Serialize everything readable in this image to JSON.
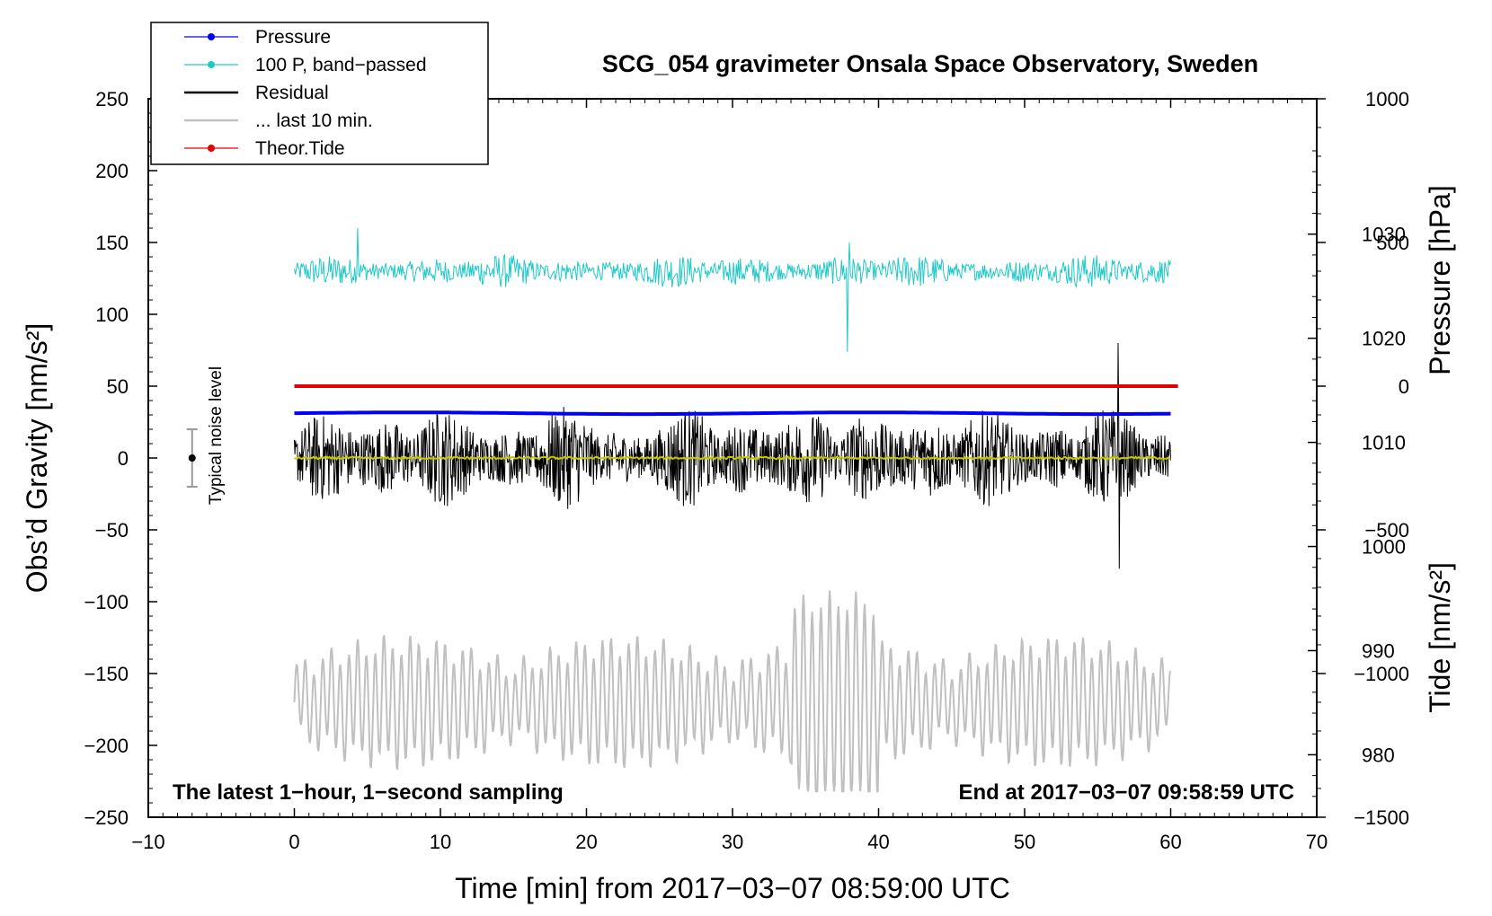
{
  "chart_data": {
    "type": "line",
    "title": "SCG_054 gravimeter Onsala Space Observatory, Sweden",
    "xlabel": "Time [min] from 2017−03−07 08:59:00 UTC",
    "ylabel_left": "Obs’d Gravity [nm/s²]",
    "ylabel_right_top": "Pressure [hPa]",
    "ylabel_right_bottom": "Tide [nm/s²]",
    "xlim": [
      -10,
      70
    ],
    "ylim": [
      -250,
      250
    ],
    "x_ticks": [
      "−10",
      "0",
      "10",
      "20",
      "30",
      "40",
      "50",
      "60",
      "70"
    ],
    "y_ticks": [
      "−250",
      "−200",
      "−150",
      "−100",
      "−50",
      "0",
      "50",
      "100",
      "150",
      "200",
      "250"
    ],
    "pressure_axis": {
      "ticks": [
        "980",
        "990",
        "1000",
        "1010",
        "1020",
        "1030"
      ],
      "values": [
        980,
        990,
        1000,
        1010,
        1020,
        1030
      ],
      "range": [
        974,
        1043
      ]
    },
    "tide_axis": {
      "ticks": [
        "−1500",
        "−1000",
        "−500",
        "0",
        "500",
        "1000"
      ],
      "values": [
        -1500,
        -1000,
        -500,
        0,
        500,
        1000
      ],
      "range": [
        -1500,
        1000
      ]
    },
    "note_left": "The latest 1−hour, 1−second sampling",
    "note_right": "End at 2017−03−07 09:58:59 UTC",
    "noise_label": "Typical noise level",
    "noise_bar": {
      "x": -7,
      "center": 0,
      "half_range": 20
    },
    "legend": {
      "position": "top-left",
      "entries": [
        {
          "label": "Pressure",
          "color": "#0000ff",
          "marker": true
        },
        {
          "label": "100 P, band−passed",
          "color": "#20c8c8",
          "marker": true
        },
        {
          "label": "Residual",
          "color": "#000000",
          "marker": false
        },
        {
          "label": "... last 10 min.",
          "color": "#c0c0c0",
          "marker": false
        },
        {
          "label": "Theor.Tide",
          "color": "#e00000",
          "marker": true
        }
      ]
    },
    "series": [
      {
        "name": "Pressure",
        "color": "#0000ff",
        "axis": "pressure",
        "x_range": [
          0,
          60
        ],
        "level": 1012.8
      },
      {
        "name": "100 P, band−passed",
        "color": "#20c8c8",
        "axis": "left",
        "x_range": [
          0,
          60
        ],
        "center": 130,
        "typical_amplitude": 12,
        "min": 74,
        "max": 160
      },
      {
        "name": "Residual",
        "color": "#000000",
        "axis": "left",
        "x_range": [
          0,
          60
        ],
        "center": 0,
        "typical_amplitude": 25,
        "min": -77,
        "max": 80
      },
      {
        "color": "#c8c800",
        "axis": "left",
        "x_range": [
          0,
          60
        ],
        "center": 0
      },
      {
        "name": "... last 10 min.",
        "color": "#c0c0c0",
        "axis": "left",
        "x_range": [
          0,
          60
        ],
        "center": -170,
        "min": -232,
        "max": -75
      },
      {
        "name": "Theor.Tide",
        "color": "#e00000",
        "axis": "tide",
        "x_range": [
          0,
          60.5
        ],
        "level": 0
      }
    ]
  }
}
